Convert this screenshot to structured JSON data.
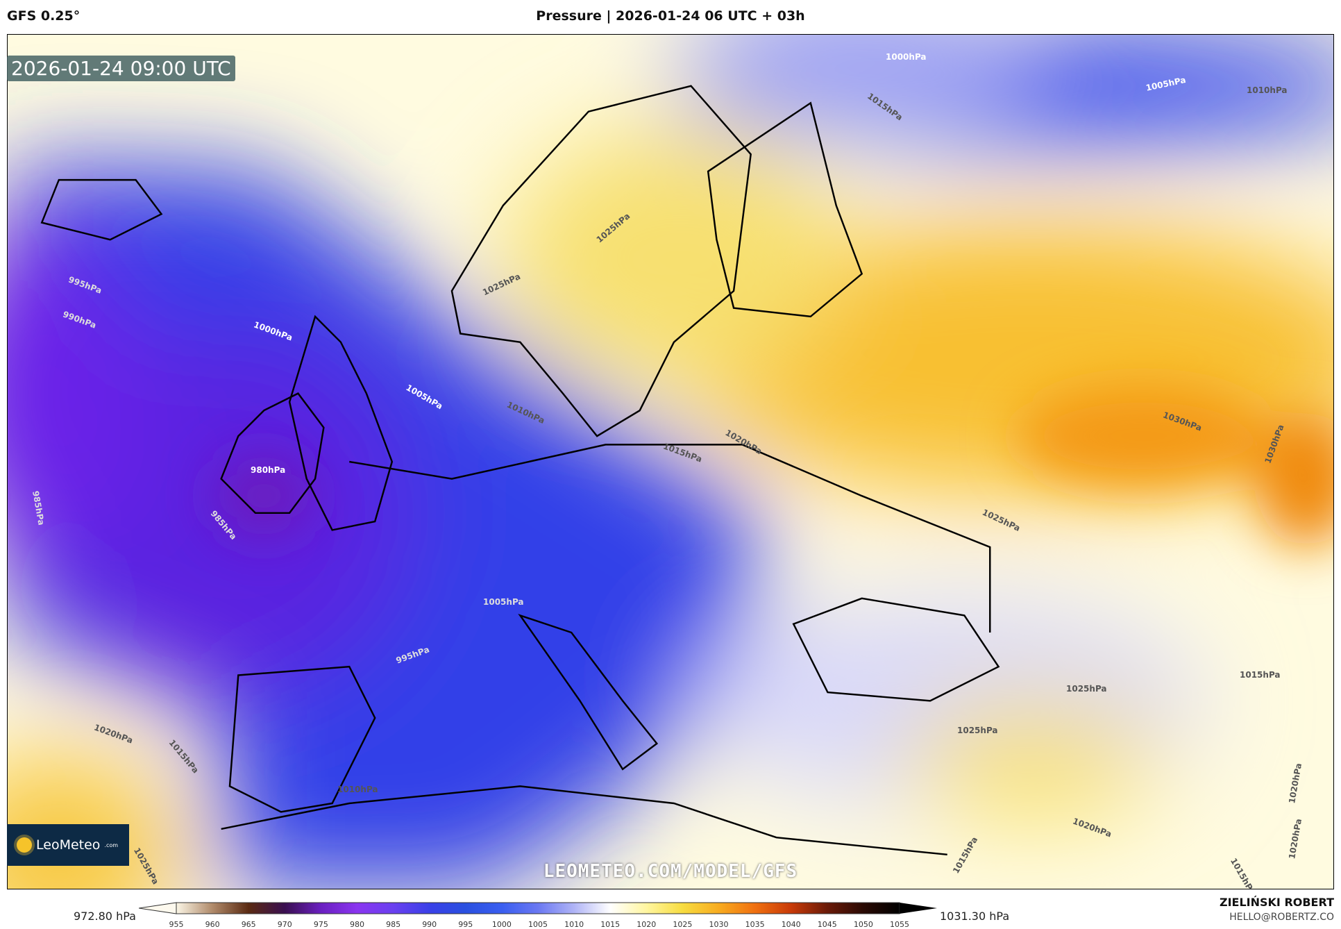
{
  "header": {
    "model": "GFS 0.25°",
    "title": "Pressure | 2026-01-24 06 UTC + 03h"
  },
  "map": {
    "valid_time": "2026-01-24 09:00 UTC",
    "watermark_url": "LEOMETEO.COM/MODEL/GFS",
    "logo": {
      "name": "LeoMeteo",
      "suffix": ".com"
    },
    "contour_labels": [
      "1000hPa",
      "1005hPa",
      "1010hPa",
      "1015hPa",
      "1025hPa",
      "1025hPa",
      "995hPa",
      "990hPa",
      "1000hPa",
      "1005hPa",
      "1010hPa",
      "980hPa",
      "985hPa",
      "985hPa",
      "1030hPa",
      "1030hPa",
      "1025hPa",
      "1020hPa",
      "1015hPa",
      "1005hPa",
      "995hPa",
      "1020hPa",
      "1015hPa",
      "1010hPa",
      "1025hPa",
      "1025hPa",
      "1025hPa",
      "1015hPa",
      "1020hPa",
      "1015hPa",
      "1015hPa",
      "1020hPa",
      "1020hPa"
    ]
  },
  "colorbar": {
    "min_label": "972.80 hPa",
    "max_label": "1031.30 hPa",
    "ticks": [
      "955",
      "960",
      "965",
      "970",
      "975",
      "980",
      "985",
      "990",
      "995",
      "1000",
      "1005",
      "1010",
      "1015",
      "1020",
      "1025",
      "1030",
      "1035",
      "1040",
      "1045",
      "1050",
      "1055"
    ],
    "colors": [
      "#fbf6e6",
      "#b08a6a",
      "#5a2a12",
      "#3a0f50",
      "#6a1fc0",
      "#8a35f0",
      "#6a40f0",
      "#3a40e8",
      "#2a50e0",
      "#3a5ef0",
      "#6a78f2",
      "#b0b4f6",
      "#ffffff",
      "#fff6a0",
      "#f7dc40",
      "#f8ac20",
      "#f07010",
      "#c83a08",
      "#6a1a08",
      "#2a0a04",
      "#000000"
    ]
  },
  "footer": {
    "author": "ZIELIŃSKI ROBERT",
    "email": "HELLO@ROBERTZ.CO"
  }
}
